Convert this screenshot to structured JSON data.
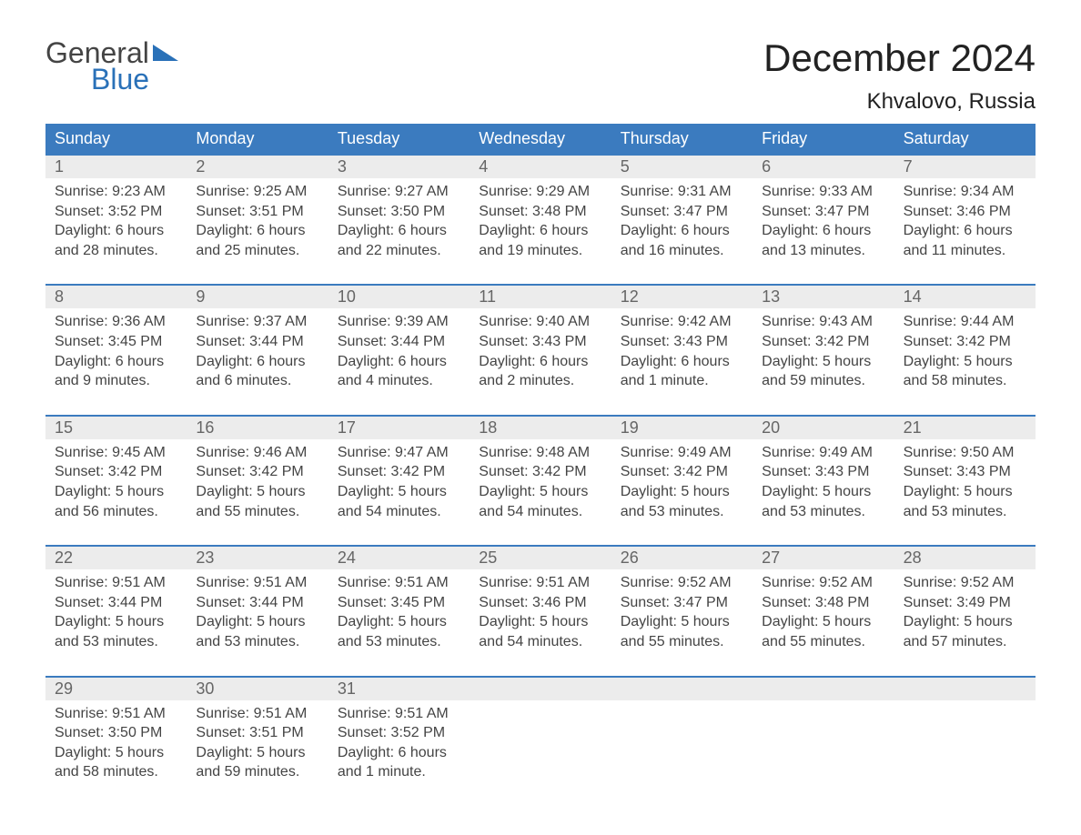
{
  "logo": {
    "text1": "General",
    "text2": "Blue"
  },
  "title": "December 2024",
  "location": "Khvalovo, Russia",
  "colors": {
    "header_bg": "#3b7bbf",
    "header_text": "#ffffff",
    "date_bg": "#ececec",
    "date_text": "#666666",
    "body_text": "#444444",
    "week_border": "#3b7bbf",
    "logo_blue": "#2a71b8"
  },
  "day_names": [
    "Sunday",
    "Monday",
    "Tuesday",
    "Wednesday",
    "Thursday",
    "Friday",
    "Saturday"
  ],
  "weeks": [
    {
      "dates": [
        "1",
        "2",
        "3",
        "4",
        "5",
        "6",
        "7"
      ],
      "cells": [
        {
          "sunrise": "Sunrise: 9:23 AM",
          "sunset": "Sunset: 3:52 PM",
          "d1": "Daylight: 6 hours",
          "d2": "and 28 minutes."
        },
        {
          "sunrise": "Sunrise: 9:25 AM",
          "sunset": "Sunset: 3:51 PM",
          "d1": "Daylight: 6 hours",
          "d2": "and 25 minutes."
        },
        {
          "sunrise": "Sunrise: 9:27 AM",
          "sunset": "Sunset: 3:50 PM",
          "d1": "Daylight: 6 hours",
          "d2": "and 22 minutes."
        },
        {
          "sunrise": "Sunrise: 9:29 AM",
          "sunset": "Sunset: 3:48 PM",
          "d1": "Daylight: 6 hours",
          "d2": "and 19 minutes."
        },
        {
          "sunrise": "Sunrise: 9:31 AM",
          "sunset": "Sunset: 3:47 PM",
          "d1": "Daylight: 6 hours",
          "d2": "and 16 minutes."
        },
        {
          "sunrise": "Sunrise: 9:33 AM",
          "sunset": "Sunset: 3:47 PM",
          "d1": "Daylight: 6 hours",
          "d2": "and 13 minutes."
        },
        {
          "sunrise": "Sunrise: 9:34 AM",
          "sunset": "Sunset: 3:46 PM",
          "d1": "Daylight: 6 hours",
          "d2": "and 11 minutes."
        }
      ]
    },
    {
      "dates": [
        "8",
        "9",
        "10",
        "11",
        "12",
        "13",
        "14"
      ],
      "cells": [
        {
          "sunrise": "Sunrise: 9:36 AM",
          "sunset": "Sunset: 3:45 PM",
          "d1": "Daylight: 6 hours",
          "d2": "and 9 minutes."
        },
        {
          "sunrise": "Sunrise: 9:37 AM",
          "sunset": "Sunset: 3:44 PM",
          "d1": "Daylight: 6 hours",
          "d2": "and 6 minutes."
        },
        {
          "sunrise": "Sunrise: 9:39 AM",
          "sunset": "Sunset: 3:44 PM",
          "d1": "Daylight: 6 hours",
          "d2": "and 4 minutes."
        },
        {
          "sunrise": "Sunrise: 9:40 AM",
          "sunset": "Sunset: 3:43 PM",
          "d1": "Daylight: 6 hours",
          "d2": "and 2 minutes."
        },
        {
          "sunrise": "Sunrise: 9:42 AM",
          "sunset": "Sunset: 3:43 PM",
          "d1": "Daylight: 6 hours",
          "d2": "and 1 minute."
        },
        {
          "sunrise": "Sunrise: 9:43 AM",
          "sunset": "Sunset: 3:42 PM",
          "d1": "Daylight: 5 hours",
          "d2": "and 59 minutes."
        },
        {
          "sunrise": "Sunrise: 9:44 AM",
          "sunset": "Sunset: 3:42 PM",
          "d1": "Daylight: 5 hours",
          "d2": "and 58 minutes."
        }
      ]
    },
    {
      "dates": [
        "15",
        "16",
        "17",
        "18",
        "19",
        "20",
        "21"
      ],
      "cells": [
        {
          "sunrise": "Sunrise: 9:45 AM",
          "sunset": "Sunset: 3:42 PM",
          "d1": "Daylight: 5 hours",
          "d2": "and 56 minutes."
        },
        {
          "sunrise": "Sunrise: 9:46 AM",
          "sunset": "Sunset: 3:42 PM",
          "d1": "Daylight: 5 hours",
          "d2": "and 55 minutes."
        },
        {
          "sunrise": "Sunrise: 9:47 AM",
          "sunset": "Sunset: 3:42 PM",
          "d1": "Daylight: 5 hours",
          "d2": "and 54 minutes."
        },
        {
          "sunrise": "Sunrise: 9:48 AM",
          "sunset": "Sunset: 3:42 PM",
          "d1": "Daylight: 5 hours",
          "d2": "and 54 minutes."
        },
        {
          "sunrise": "Sunrise: 9:49 AM",
          "sunset": "Sunset: 3:42 PM",
          "d1": "Daylight: 5 hours",
          "d2": "and 53 minutes."
        },
        {
          "sunrise": "Sunrise: 9:49 AM",
          "sunset": "Sunset: 3:43 PM",
          "d1": "Daylight: 5 hours",
          "d2": "and 53 minutes."
        },
        {
          "sunrise": "Sunrise: 9:50 AM",
          "sunset": "Sunset: 3:43 PM",
          "d1": "Daylight: 5 hours",
          "d2": "and 53 minutes."
        }
      ]
    },
    {
      "dates": [
        "22",
        "23",
        "24",
        "25",
        "26",
        "27",
        "28"
      ],
      "cells": [
        {
          "sunrise": "Sunrise: 9:51 AM",
          "sunset": "Sunset: 3:44 PM",
          "d1": "Daylight: 5 hours",
          "d2": "and 53 minutes."
        },
        {
          "sunrise": "Sunrise: 9:51 AM",
          "sunset": "Sunset: 3:44 PM",
          "d1": "Daylight: 5 hours",
          "d2": "and 53 minutes."
        },
        {
          "sunrise": "Sunrise: 9:51 AM",
          "sunset": "Sunset: 3:45 PM",
          "d1": "Daylight: 5 hours",
          "d2": "and 53 minutes."
        },
        {
          "sunrise": "Sunrise: 9:51 AM",
          "sunset": "Sunset: 3:46 PM",
          "d1": "Daylight: 5 hours",
          "d2": "and 54 minutes."
        },
        {
          "sunrise": "Sunrise: 9:52 AM",
          "sunset": "Sunset: 3:47 PM",
          "d1": "Daylight: 5 hours",
          "d2": "and 55 minutes."
        },
        {
          "sunrise": "Sunrise: 9:52 AM",
          "sunset": "Sunset: 3:48 PM",
          "d1": "Daylight: 5 hours",
          "d2": "and 55 minutes."
        },
        {
          "sunrise": "Sunrise: 9:52 AM",
          "sunset": "Sunset: 3:49 PM",
          "d1": "Daylight: 5 hours",
          "d2": "and 57 minutes."
        }
      ]
    },
    {
      "dates": [
        "29",
        "30",
        "31",
        "",
        "",
        "",
        ""
      ],
      "cells": [
        {
          "sunrise": "Sunrise: 9:51 AM",
          "sunset": "Sunset: 3:50 PM",
          "d1": "Daylight: 5 hours",
          "d2": "and 58 minutes."
        },
        {
          "sunrise": "Sunrise: 9:51 AM",
          "sunset": "Sunset: 3:51 PM",
          "d1": "Daylight: 5 hours",
          "d2": "and 59 minutes."
        },
        {
          "sunrise": "Sunrise: 9:51 AM",
          "sunset": "Sunset: 3:52 PM",
          "d1": "Daylight: 6 hours",
          "d2": "and 1 minute."
        },
        {
          "sunrise": "",
          "sunset": "",
          "d1": "",
          "d2": ""
        },
        {
          "sunrise": "",
          "sunset": "",
          "d1": "",
          "d2": ""
        },
        {
          "sunrise": "",
          "sunset": "",
          "d1": "",
          "d2": ""
        },
        {
          "sunrise": "",
          "sunset": "",
          "d1": "",
          "d2": ""
        }
      ]
    }
  ]
}
